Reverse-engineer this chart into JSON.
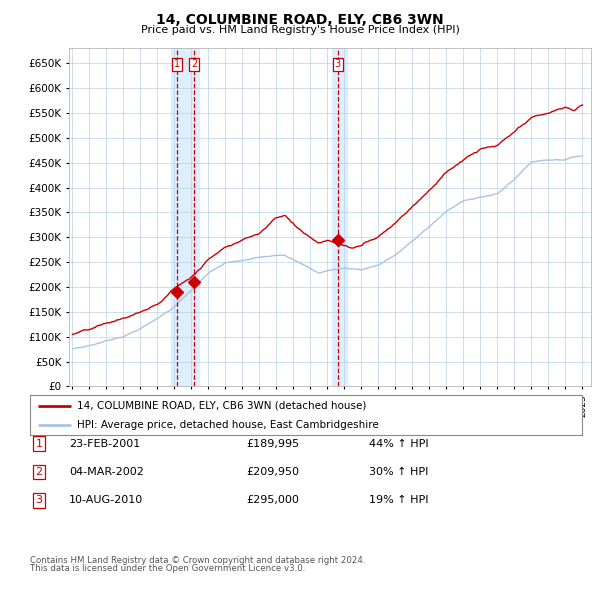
{
  "title": "14, COLUMBINE ROAD, ELY, CB6 3WN",
  "subtitle": "Price paid vs. HM Land Registry's House Price Index (HPI)",
  "legend_line1": "14, COLUMBINE ROAD, ELY, CB6 3WN (detached house)",
  "legend_line2": "HPI: Average price, detached house, East Cambridgeshire",
  "footer1": "Contains HM Land Registry data © Crown copyright and database right 2024.",
  "footer2": "This data is licensed under the Open Government Licence v3.0.",
  "transactions": [
    {
      "id": 1,
      "date": "23-FEB-2001",
      "price": 189995,
      "pct": "44%",
      "dir": "↑"
    },
    {
      "id": 2,
      "date": "04-MAR-2002",
      "price": 209950,
      "pct": "30%",
      "dir": "↑"
    },
    {
      "id": 3,
      "date": "10-AUG-2010",
      "price": 295000,
      "pct": "19%",
      "dir": "↑"
    }
  ],
  "sale_dates_decimal": [
    2001.14,
    2002.17,
    2010.61
  ],
  "sale_prices": [
    189995,
    209950,
    295000
  ],
  "hpi_color": "#aac4e0",
  "price_color": "#cc0000",
  "vline_color": "#cc0000",
  "highlight_color": "#ddeeff",
  "grid_color": "#b8d0e8",
  "background_color": "#ffffff",
  "ylim": [
    0,
    680000
  ],
  "yticks": [
    0,
    50000,
    100000,
    150000,
    200000,
    250000,
    300000,
    350000,
    400000,
    450000,
    500000,
    550000,
    600000,
    650000
  ],
  "ytick_labels": [
    "£0",
    "£50K",
    "£100K",
    "£150K",
    "£200K",
    "£250K",
    "£300K",
    "£350K",
    "£400K",
    "£450K",
    "£500K",
    "£550K",
    "£600K",
    "£650K"
  ],
  "xlim_start": 1994.8,
  "xlim_end": 2025.5,
  "xticks": [
    1995,
    1996,
    1997,
    1998,
    1999,
    2000,
    2001,
    2002,
    2003,
    2004,
    2005,
    2006,
    2007,
    2008,
    2009,
    2010,
    2011,
    2012,
    2013,
    2014,
    2015,
    2016,
    2017,
    2018,
    2019,
    2020,
    2021,
    2022,
    2023,
    2024,
    2025
  ]
}
